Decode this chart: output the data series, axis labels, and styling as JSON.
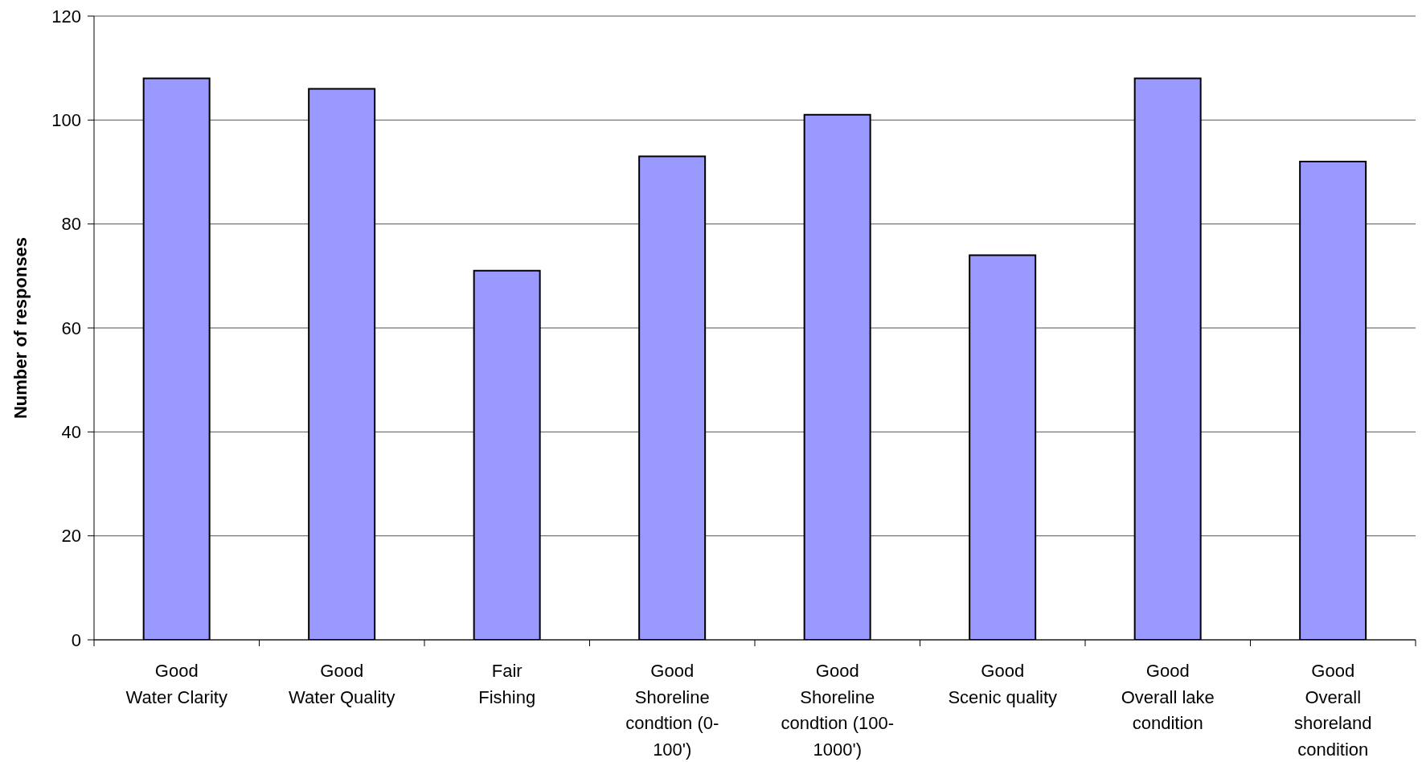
{
  "chart_data": {
    "type": "bar",
    "ylabel": "Number of responses",
    "categories": [
      "Good\nWater Clarity",
      "Good\nWater Quality",
      "Fair\nFishing",
      "Good\nShoreline condtion (0-100')",
      "Good\nShoreline condtion (100-1000')",
      "Good\nScenic quality",
      "Good\nOverall lake condition",
      "Good\nOverall shoreland condition"
    ],
    "values": [
      108,
      106,
      71,
      93,
      101,
      74,
      108,
      92
    ],
    "color": "#9999ff",
    "ylim": [
      0,
      120
    ],
    "yticks": [
      0,
      20,
      40,
      60,
      80,
      100,
      120
    ],
    "grid": "y"
  }
}
